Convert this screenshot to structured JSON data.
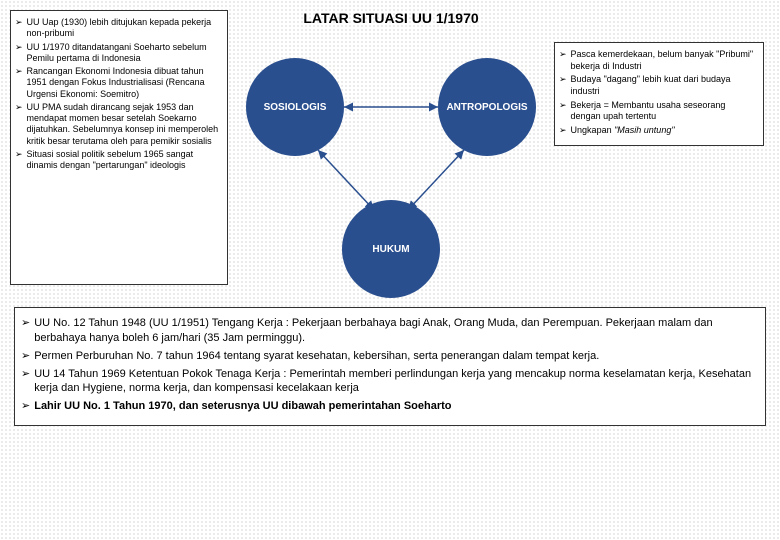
{
  "title": "LATAR SITUASI UU 1/1970",
  "nodes": {
    "left": {
      "label": "SOSIOLOGIS",
      "color": "#2a4f8f"
    },
    "right": {
      "label": "ANTROPOLOGIS",
      "color": "#2a4f8f"
    },
    "bottom": {
      "label": "HUKUM",
      "color": "#2a4f8f"
    }
  },
  "connector_color": "#2a4f8f",
  "left_points": [
    "UU Uap (1930) lebih ditujukan kepada pekerja non-pribumi",
    "UU 1/1970 ditandatangani Soeharto sebelum Pemilu pertama di Indonesia",
    "Rancangan Ekonomi Indonesia dibuat tahun 1951 dengan Fokus Industrialisasi (Rencana Urgensi Ekonomi: Soemitro)",
    "UU PMA sudah dirancang sejak 1953 dan mendapat momen besar setelah Soekarno dijatuhkan. Sebelumnya konsep ini memperoleh kritik besar terutama oleh para pemikir sosialis",
    "Situasi sosial politik sebelum 1965 sangat dinamis dengan \"pertarungan\" ideologis"
  ],
  "right_points": [
    "Pasca kemerdekaan, belum banyak \"Pribumi\" bekerja di Industri",
    "Budaya \"dagang\" lebih kuat dari budaya industri",
    "Bekerja = Membantu usaha seseorang dengan upah tertentu",
    "Ungkapan \"Masih untung\""
  ],
  "bottom_points": [
    "UU No. 12 Tahun 1948 (UU 1/1951) Tengang Kerja : Pekerjaan berbahaya bagi Anak, Orang Muda, dan Perempuan. Pekerjaan malam dan berbahaya hanya boleh 6 jam/hari (35 Jam perminggu).",
    "Permen Perburuhan No. 7 tahun  1964 tentang syarat kesehatan, kebersihan, serta penerangan dalam tempat kerja.",
    "UU 14 Tahun 1969 Ketentuan Pokok Tenaga Kerja : Pemerintah memberi perlindungan kerja yang mencakup norma keselamatan kerja, Kesehatan kerja dan Hygiene, norma kerja, dan kompensasi kecelakaan kerja",
    "Lahir UU No. 1 Tahun 1970, dan seterusnya UU dibawah pemerintahan Soeharto"
  ],
  "bottom_bold_index": 3
}
